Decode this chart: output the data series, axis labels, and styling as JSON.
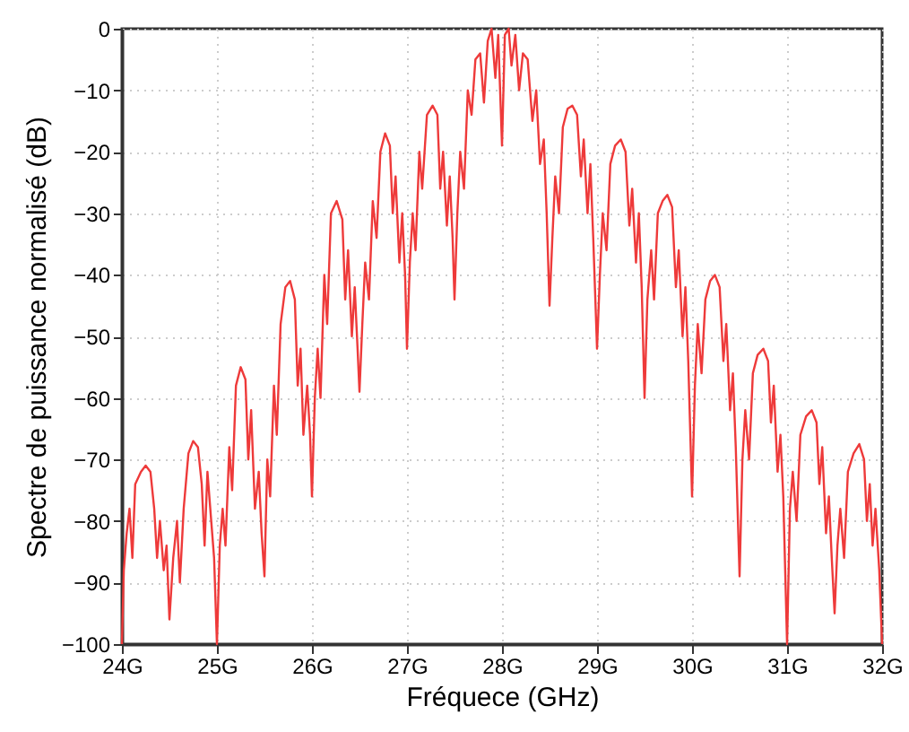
{
  "chart_data": {
    "type": "line",
    "xlabel": "Fréquece (GHz)",
    "ylabel": "Spectre de puissance normalisé (dB)",
    "xlim": [
      24,
      32
    ],
    "ylim": [
      -100,
      0
    ],
    "xticks": [
      {
        "value": 24,
        "label": "24G"
      },
      {
        "value": 25,
        "label": "25G"
      },
      {
        "value": 26,
        "label": "26G"
      },
      {
        "value": 27,
        "label": "27G"
      },
      {
        "value": 28,
        "label": "28G"
      },
      {
        "value": 29,
        "label": "29G"
      },
      {
        "value": 30,
        "label": "30G"
      },
      {
        "value": 31,
        "label": "31G"
      },
      {
        "value": 32,
        "label": "32G"
      }
    ],
    "yticks": [
      -100,
      -90,
      -80,
      -70,
      -60,
      -50,
      -40,
      -30,
      -20,
      -10,
      0
    ],
    "grid": true,
    "line_style": "solid",
    "marker": "none",
    "series": [
      {
        "color": "#ee3a3a",
        "x": [
          24.0,
          24.02,
          24.05,
          24.08,
          24.11,
          24.14,
          24.2,
          24.25,
          24.3,
          24.34,
          24.37,
          24.4,
          24.44,
          24.47,
          24.5,
          24.54,
          24.58,
          24.61,
          24.65,
          24.7,
          24.75,
          24.8,
          24.84,
          24.87,
          24.9,
          24.94,
          24.97,
          25.0,
          25.03,
          25.06,
          25.09,
          25.13,
          25.16,
          25.2,
          25.25,
          25.3,
          25.33,
          25.36,
          25.4,
          25.44,
          25.47,
          25.5,
          25.53,
          25.56,
          25.6,
          25.63,
          25.67,
          25.72,
          25.77,
          25.82,
          25.85,
          25.88,
          25.91,
          25.95,
          25.98,
          26.0,
          26.03,
          26.06,
          26.09,
          26.13,
          26.16,
          26.2,
          26.26,
          26.32,
          26.35,
          26.38,
          26.42,
          26.45,
          26.48,
          26.5,
          26.53,
          26.56,
          26.6,
          26.64,
          26.68,
          26.72,
          26.77,
          26.82,
          26.85,
          26.88,
          26.92,
          26.95,
          26.98,
          27.0,
          27.03,
          27.06,
          27.09,
          27.13,
          27.16,
          27.21,
          27.27,
          27.32,
          27.35,
          27.38,
          27.42,
          27.45,
          27.48,
          27.5,
          27.53,
          27.56,
          27.6,
          27.64,
          27.68,
          27.72,
          27.77,
          27.81,
          27.85,
          27.89,
          27.93,
          27.96,
          28.0,
          28.03,
          28.07,
          28.1,
          28.14,
          28.18,
          28.22,
          28.27,
          28.32,
          28.36,
          28.4,
          28.44,
          28.47,
          28.5,
          28.53,
          28.56,
          28.6,
          28.64,
          28.69,
          28.74,
          28.79,
          28.83,
          28.86,
          28.9,
          28.93,
          28.96,
          29.0,
          29.03,
          29.06,
          29.1,
          29.14,
          29.19,
          29.25,
          29.3,
          29.34,
          29.37,
          29.41,
          29.44,
          29.47,
          29.5,
          29.53,
          29.57,
          29.6,
          29.64,
          29.69,
          29.74,
          29.79,
          29.83,
          29.86,
          29.9,
          29.93,
          29.96,
          30.0,
          30.03,
          30.06,
          30.1,
          30.14,
          30.19,
          30.24,
          30.29,
          30.33,
          30.36,
          30.4,
          30.43,
          30.46,
          30.5,
          30.53,
          30.56,
          30.6,
          30.64,
          30.69,
          30.75,
          30.8,
          30.83,
          30.86,
          30.9,
          30.93,
          30.96,
          31.0,
          31.03,
          31.06,
          31.1,
          31.14,
          31.2,
          31.26,
          31.31,
          31.34,
          31.37,
          31.41,
          31.44,
          31.47,
          31.5,
          31.53,
          31.56,
          31.6,
          31.64,
          31.7,
          31.76,
          31.81,
          31.84,
          31.87,
          31.9,
          31.93,
          31.97,
          32.0
        ],
        "values": [
          -100,
          -88,
          -82,
          -78,
          -86,
          -74,
          -72,
          -71,
          -72,
          -78,
          -86,
          -80,
          -88,
          -84,
          -96,
          -86,
          -80,
          -90,
          -78,
          -69,
          -67,
          -68,
          -74,
          -84,
          -72,
          -80,
          -86,
          -100,
          -84,
          -78,
          -84,
          -68,
          -75,
          -58,
          -55,
          -57,
          -70,
          -62,
          -78,
          -72,
          -82,
          -89,
          -70,
          -76,
          -58,
          -66,
          -48,
          -42,
          -41,
          -44,
          -58,
          -52,
          -66,
          -58,
          -66,
          -76,
          -60,
          -52,
          -60,
          -40,
          -48,
          -30,
          -28,
          -31,
          -44,
          -36,
          -50,
          -42,
          -52,
          -59,
          -48,
          -38,
          -44,
          -28,
          -34,
          -20,
          -17,
          -19,
          -30,
          -24,
          -38,
          -30,
          -40,
          -52,
          -38,
          -30,
          -36,
          -20,
          -26,
          -14,
          -12.5,
          -14,
          -26,
          -20,
          -32,
          -24,
          -34,
          -44,
          -30,
          -20,
          -26,
          -10,
          -14,
          -5,
          -4,
          -12,
          -2,
          0,
          -8,
          -1,
          -19,
          -1,
          0,
          -6,
          -1,
          -10,
          -4,
          -5,
          -15,
          -10,
          -22,
          -18,
          -30,
          -45,
          -34,
          -24,
          -30,
          -16,
          -13,
          -12.5,
          -14,
          -24,
          -18,
          -30,
          -22,
          -34,
          -52,
          -40,
          -30,
          -36,
          -22,
          -19,
          -18,
          -20,
          -32,
          -26,
          -38,
          -30,
          -42,
          -60,
          -44,
          -36,
          -44,
          -30,
          -28,
          -27,
          -29,
          -42,
          -36,
          -50,
          -42,
          -54,
          -76,
          -58,
          -48,
          -56,
          -44,
          -41,
          -40,
          -42,
          -54,
          -48,
          -62,
          -56,
          -68,
          -89,
          -70,
          -62,
          -70,
          -56,
          -53,
          -52,
          -54,
          -64,
          -58,
          -72,
          -66,
          -76,
          -100,
          -78,
          -72,
          -80,
          -66,
          -63,
          -62,
          -64,
          -74,
          -68,
          -82,
          -76,
          -86,
          -95,
          -84,
          -78,
          -86,
          -72,
          -69,
          -67.5,
          -70,
          -80,
          -74,
          -84,
          -78,
          -88,
          -100
        ]
      }
    ]
  }
}
